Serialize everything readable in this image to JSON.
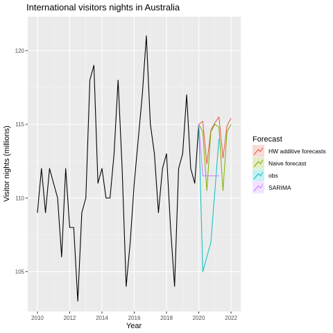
{
  "chart_data": {
    "type": "line",
    "title": "International visitors nights in Australia",
    "xlabel": "Year",
    "ylabel": "Visitor nights (millions)",
    "xlim": [
      2009.4,
      2022.6
    ],
    "ylim": [
      102.3,
      122.3
    ],
    "x_ticks": [
      2010,
      2012,
      2014,
      2016,
      2018,
      2020,
      2022
    ],
    "x_tick_labels": [
      "2010",
      "2012",
      "2014",
      "2016",
      "2018",
      "2020",
      "2022"
    ],
    "y_ticks": [
      105,
      110,
      115,
      120
    ],
    "y_tick_labels": [
      "105",
      "110",
      "115",
      "120"
    ],
    "grid": true,
    "panel_background": "#ebebeb",
    "legend": {
      "title": "Forecast",
      "placement": "right",
      "entries": [
        "HW additive forecasts",
        "Naive forecast",
        "obs",
        "SARIMA"
      ]
    },
    "series": [
      {
        "name": "",
        "color": "#000000",
        "x": [
          2010.0,
          2010.25,
          2010.5,
          2010.75,
          2011.0,
          2011.25,
          2011.5,
          2011.75,
          2012.0,
          2012.25,
          2012.5,
          2012.75,
          2013.0,
          2013.25,
          2013.5,
          2013.75,
          2014.0,
          2014.25,
          2014.5,
          2014.75,
          2015.0,
          2015.25,
          2015.5,
          2015.75,
          2016.0,
          2016.25,
          2016.5,
          2016.75,
          2017.0,
          2017.25,
          2017.5,
          2017.75,
          2018.0,
          2018.25,
          2018.5,
          2018.75,
          2019.0,
          2019.25,
          2019.5,
          2019.75,
          2020.0
        ],
        "y": [
          109.0,
          112.0,
          109.0,
          112.0,
          111.0,
          110.0,
          106.0,
          112.0,
          108.0,
          108.0,
          103.0,
          109.0,
          110.0,
          118.0,
          119.0,
          111.0,
          112.0,
          110.0,
          110.0,
          113.0,
          118.0,
          112.0,
          104.0,
          107.0,
          111.0,
          114.0,
          117.0,
          121.0,
          115.0,
          113.0,
          109.0,
          112.0,
          113.0,
          108.0,
          104.0,
          112.0,
          113.0,
          117.0,
          112.0,
          111.0,
          115.0
        ]
      },
      {
        "name": "HW additive forecasts",
        "color": "#e5553f",
        "x": [
          2020.0,
          2020.25,
          2020.5,
          2020.75,
          2021.0,
          2021.25,
          2021.5,
          2021.75,
          2022.0
        ],
        "y": [
          115.0,
          115.2,
          112.3,
          114.6,
          115.1,
          115.5,
          112.7,
          114.9,
          115.4
        ]
      },
      {
        "name": "Naive forecast",
        "color": "#7cae00",
        "x": [
          2020.0,
          2020.25,
          2020.5,
          2020.75,
          2021.0,
          2021.25,
          2021.5,
          2021.75,
          2022.0
        ],
        "y": [
          115.0,
          114.5,
          110.5,
          114.5,
          115.0,
          114.8,
          110.5,
          114.5,
          115.0
        ]
      },
      {
        "name": "obs",
        "color": "#00bfc4",
        "x": [
          2020.0,
          2020.25,
          2020.75,
          2021.25
        ],
        "y": [
          115.0,
          105.0,
          107.0,
          114.0
        ]
      },
      {
        "name": "SARIMA",
        "color": "#c77cff",
        "x": [
          2020.0,
          2020.25,
          2020.5,
          2020.75,
          2021.0,
          2021.25
        ],
        "y": [
          115.0,
          111.5,
          111.5,
          111.5,
          111.5,
          111.5
        ]
      }
    ]
  }
}
